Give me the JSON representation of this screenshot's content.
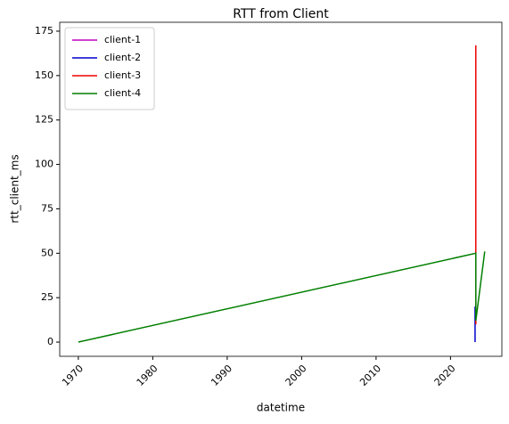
{
  "chart_data": {
    "type": "line",
    "title": "RTT from Client",
    "x_label": "datetime",
    "y_label": "rtt_client_ms",
    "xlim": [
      1967.5,
      2026.9
    ],
    "xticks": [
      1970,
      1980,
      1990,
      2000,
      2010,
      2020
    ],
    "ylim": [
      -8,
      180
    ],
    "yticks": [
      0,
      25,
      50,
      75,
      100,
      125,
      150,
      175
    ],
    "legend": "upper left",
    "series": [
      {
        "name": "client-1",
        "color": "#bf00bf",
        "x": [
          2023.4,
          2023.4
        ],
        "values": [
          10,
          45
        ]
      },
      {
        "name": "client-2",
        "color": "#0000cc",
        "x": [
          2023.3,
          2023.3
        ],
        "values": [
          0,
          20
        ]
      },
      {
        "name": "client-3",
        "color": "#ee0000",
        "x": [
          2023.4,
          2023.4,
          2023.4
        ],
        "values": [
          10,
          167,
          30
        ]
      },
      {
        "name": "client-4",
        "color": "#007f00",
        "x": [
          1970,
          2023.4,
          2023.4,
          2024.6
        ],
        "values": [
          0,
          50,
          12,
          51
        ]
      }
    ]
  }
}
